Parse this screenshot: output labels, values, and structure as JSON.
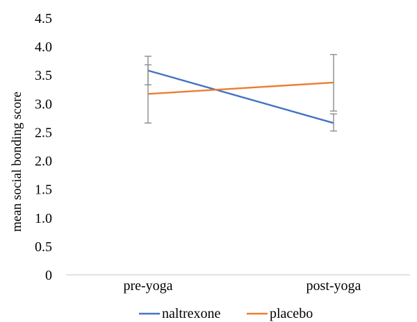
{
  "chart_data": {
    "type": "line",
    "title": "",
    "xlabel": "",
    "ylabel": "mean social bonding score",
    "categories": [
      "pre-yoga",
      "post-yoga"
    ],
    "y_ticks": [
      "0",
      "0.5",
      "1.0",
      "1.5",
      "2.0",
      "2.5",
      "3.0",
      "3.5",
      "4.0",
      "4.5"
    ],
    "ylim": [
      0,
      4.5
    ],
    "grid": false,
    "legend_position": "bottom",
    "series": [
      {
        "name": "naltrexone",
        "color": "#4472C4",
        "values": [
          3.58,
          2.66
        ],
        "error_low": [
          2.66,
          2.52
        ],
        "error_high": [
          3.68,
          2.82
        ]
      },
      {
        "name": "placebo",
        "color": "#ED7D31",
        "values": [
          3.17,
          3.37
        ],
        "error_low": [
          3.33,
          2.87
        ],
        "error_high": [
          3.83,
          3.86
        ]
      }
    ]
  }
}
